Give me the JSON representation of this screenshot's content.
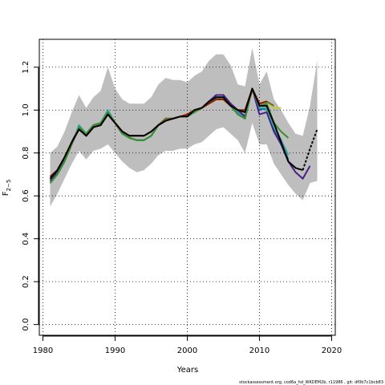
{
  "chart_data": {
    "type": "line",
    "title": "",
    "xlabel": "Years",
    "ylabel_main": "F",
    "ylabel_sub": "2−5",
    "xlim": [
      1979.5,
      2020.5
    ],
    "ylim": [
      -0.05,
      1.33
    ],
    "x_ticks": [
      1980,
      1990,
      2000,
      2010,
      2020
    ],
    "x_tick_labels": [
      "1980",
      "1990",
      "2000",
      "2010",
      "2020"
    ],
    "y_ticks": [
      0.0,
      0.2,
      0.4,
      0.6,
      0.8,
      1.0,
      1.2
    ],
    "y_tick_labels": [
      "0.0",
      "0.2",
      "0.4",
      "0.6",
      "0.8",
      "1.0",
      "1.2"
    ],
    "grid": true,
    "legend": "none",
    "confidence_band": {
      "x": [
        1981,
        1982,
        1983,
        1984,
        1985,
        1986,
        1987,
        1988,
        1989,
        1990,
        1991,
        1992,
        1993,
        1994,
        1995,
        1996,
        1997,
        1998,
        1999,
        2000,
        2001,
        2002,
        2003,
        2004,
        2005,
        2006,
        2007,
        2008,
        2009,
        2010,
        2011,
        2012,
        2013,
        2014,
        2015,
        2016,
        2017,
        2018
      ],
      "upper": [
        0.8,
        0.83,
        0.9,
        0.99,
        1.07,
        1.01,
        1.06,
        1.09,
        1.2,
        1.1,
        1.05,
        1.03,
        1.03,
        1.03,
        1.06,
        1.12,
        1.15,
        1.14,
        1.14,
        1.13,
        1.16,
        1.18,
        1.23,
        1.26,
        1.26,
        1.21,
        1.12,
        1.11,
        1.29,
        1.12,
        1.18,
        1.05,
        1.0,
        0.94,
        0.89,
        0.88,
        1.02,
        1.23
      ],
      "lower": [
        0.55,
        0.61,
        0.68,
        0.75,
        0.81,
        0.77,
        0.81,
        0.82,
        0.84,
        0.8,
        0.76,
        0.73,
        0.71,
        0.72,
        0.75,
        0.79,
        0.81,
        0.81,
        0.82,
        0.82,
        0.84,
        0.85,
        0.88,
        0.91,
        0.92,
        0.89,
        0.86,
        0.8,
        0.94,
        0.84,
        0.84,
        0.75,
        0.7,
        0.65,
        0.61,
        0.58,
        0.66,
        0.67
      ],
      "color": "#bebebe"
    },
    "series": [
      {
        "color": "#3b9db5",
        "x": [
          1981,
          1982,
          1983,
          1984,
          1985,
          1986,
          1987,
          1988,
          1989,
          1990,
          1991,
          1992,
          1993,
          1994,
          1995,
          1996,
          1997,
          1998,
          1999,
          2000,
          2001,
          2002,
          2003,
          2004,
          2005,
          2006,
          2007,
          2008,
          2009,
          2010,
          2011,
          2012,
          2013,
          2014
        ],
        "values": [
          0.66,
          0.7,
          0.76,
          0.84,
          0.92,
          0.89,
          0.93,
          0.94,
          0.99,
          0.94,
          0.89,
          0.87,
          0.86,
          0.86,
          0.88,
          0.93,
          0.96,
          0.96,
          0.97,
          0.97,
          0.99,
          1.01,
          1.04,
          1.06,
          1.06,
          1.02,
          0.99,
          0.96,
          1.1,
          1.01,
          1.0,
          0.9,
          0.84,
          0.76
        ]
      },
      {
        "color": "#1f5faa",
        "x": [
          1981,
          1982,
          1983,
          1984,
          1985,
          1986,
          1987,
          1988,
          1989,
          1990,
          1991,
          1992,
          1993,
          1994,
          1995,
          1996,
          1997,
          1998,
          1999,
          2000,
          2001,
          2002,
          2003,
          2004,
          2005,
          2006,
          2007,
          2008,
          2009,
          2010,
          2011,
          2012,
          2013,
          2014
        ],
        "values": [
          0.67,
          0.71,
          0.77,
          0.85,
          0.92,
          0.89,
          0.93,
          0.94,
          0.99,
          0.94,
          0.89,
          0.87,
          0.86,
          0.86,
          0.88,
          0.93,
          0.96,
          0.96,
          0.97,
          0.97,
          1.0,
          1.01,
          1.04,
          1.07,
          1.07,
          1.03,
          1.0,
          0.97,
          1.1,
          1.0,
          1.01,
          0.91,
          0.84,
          0.77
        ]
      },
      {
        "color": "#4a1f86",
        "x": [
          1981,
          1982,
          1983,
          1984,
          1985,
          1986,
          1987,
          1988,
          1989,
          1990,
          1991,
          1992,
          1993,
          1994,
          1995,
          1996,
          1997,
          1998,
          1999,
          2000,
          2001,
          2002,
          2003,
          2004,
          2005,
          2006,
          2007,
          2008,
          2009,
          2010,
          2011,
          2012,
          2013,
          2014,
          2015,
          2016,
          2017
        ],
        "values": [
          0.67,
          0.71,
          0.77,
          0.85,
          0.92,
          0.89,
          0.93,
          0.94,
          0.99,
          0.94,
          0.89,
          0.87,
          0.86,
          0.86,
          0.88,
          0.93,
          0.96,
          0.96,
          0.97,
          0.97,
          1.0,
          1.01,
          1.04,
          1.07,
          1.07,
          1.03,
          1.0,
          0.97,
          1.1,
          0.98,
          0.99,
          0.9,
          0.84,
          0.76,
          0.71,
          0.68,
          0.74
        ]
      },
      {
        "color": "#2aa89a",
        "x": [
          1981,
          1982,
          1983,
          1984,
          1985,
          1986,
          1987,
          1988,
          1989,
          1990,
          1991,
          1992,
          1993,
          1994,
          1995,
          1996,
          1997,
          1998,
          1999,
          2000,
          2001,
          2002,
          2003,
          2004,
          2005,
          2006,
          2007,
          2008,
          2009,
          2010,
          2011,
          2012,
          2013,
          2014
        ],
        "values": [
          0.66,
          0.7,
          0.76,
          0.84,
          0.93,
          0.89,
          0.93,
          0.94,
          1.0,
          0.94,
          0.89,
          0.87,
          0.86,
          0.86,
          0.88,
          0.93,
          0.96,
          0.96,
          0.97,
          0.97,
          0.99,
          1.01,
          1.04,
          1.06,
          1.06,
          1.02,
          0.98,
          0.96,
          1.1,
          1.01,
          1.01,
          0.92,
          0.86,
          0.79
        ]
      },
      {
        "color": "#3a8f2e",
        "x": [
          1981,
          1982,
          1983,
          1984,
          1985,
          1986,
          1987,
          1988,
          1989,
          1990,
          1991,
          1992,
          1993,
          1994,
          1995,
          1996,
          1997,
          1998,
          1999,
          2000,
          2001,
          2002,
          2003,
          2004,
          2005,
          2006,
          2007,
          2008,
          2009,
          2010,
          2011,
          2012,
          2013,
          2014
        ],
        "values": [
          0.66,
          0.7,
          0.76,
          0.84,
          0.92,
          0.89,
          0.93,
          0.94,
          0.99,
          0.94,
          0.89,
          0.87,
          0.86,
          0.86,
          0.88,
          0.93,
          0.96,
          0.96,
          0.97,
          0.97,
          0.99,
          1.01,
          1.03,
          1.05,
          1.05,
          1.02,
          0.98,
          0.96,
          1.1,
          1.02,
          1.03,
          0.94,
          0.9,
          0.87
        ]
      },
      {
        "color": "#c8c83a",
        "x": [
          1981,
          1982,
          1983,
          1984,
          1985,
          1986,
          1987,
          1988,
          1989,
          1990,
          1991,
          1992,
          1993,
          1994,
          1995,
          1996,
          1997,
          1998,
          1999,
          2000,
          2001,
          2002,
          2003,
          2004,
          2005,
          2006,
          2007,
          2008,
          2009,
          2010,
          2011,
          2012,
          2013
        ],
        "values": [
          0.68,
          0.72,
          0.78,
          0.85,
          0.91,
          0.88,
          0.92,
          0.93,
          0.98,
          0.94,
          0.9,
          0.88,
          0.88,
          0.88,
          0.9,
          0.93,
          0.96,
          0.96,
          0.97,
          0.97,
          1.0,
          1.01,
          1.03,
          1.05,
          1.05,
          1.02,
          1.0,
          0.99,
          1.09,
          1.03,
          1.04,
          1.01,
          1.01
        ]
      },
      {
        "color": "#6b6b2a",
        "x": [
          1981,
          1982,
          1983,
          1984,
          1985,
          1986,
          1987,
          1988,
          1989,
          1990,
          1991,
          1992,
          1993,
          1994,
          1995,
          1996,
          1997,
          1998,
          1999,
          2000,
          2001,
          2002,
          2003,
          2004,
          2005,
          2006,
          2007,
          2008,
          2009,
          2010,
          2011,
          2012
        ],
        "values": [
          0.68,
          0.72,
          0.78,
          0.85,
          0.91,
          0.88,
          0.92,
          0.93,
          0.98,
          0.94,
          0.9,
          0.88,
          0.88,
          0.88,
          0.9,
          0.93,
          0.96,
          0.96,
          0.97,
          0.97,
          1.0,
          1.01,
          1.03,
          1.05,
          1.05,
          1.02,
          1.0,
          0.99,
          1.09,
          1.03,
          1.04,
          1.02
        ]
      },
      {
        "color": "#8b1a00",
        "x": [
          1981,
          1982,
          1983,
          1984,
          1985,
          1986,
          1987,
          1988,
          1989,
          1990,
          1991,
          1992,
          1993,
          1994,
          1995,
          1996,
          1997,
          1998,
          1999,
          2000,
          2001,
          2002,
          2003,
          2004,
          2005,
          2006,
          2007,
          2008,
          2009,
          2010,
          2011
        ],
        "values": [
          0.69,
          0.72,
          0.78,
          0.85,
          0.91,
          0.88,
          0.92,
          0.93,
          0.98,
          0.94,
          0.9,
          0.88,
          0.88,
          0.88,
          0.9,
          0.93,
          0.95,
          0.96,
          0.97,
          0.98,
          1.0,
          1.01,
          1.03,
          1.05,
          1.05,
          1.02,
          1.0,
          1.0,
          1.1,
          1.03,
          1.04
        ]
      },
      {
        "color": "#000000",
        "x": [
          1981,
          1982,
          1983,
          1984,
          1985,
          1986,
          1987,
          1988,
          1989,
          1990,
          1991,
          1992,
          1993,
          1994,
          1995,
          1996,
          1997,
          1998,
          1999,
          2000,
          2001,
          2002,
          2003,
          2004,
          2005,
          2006,
          2007,
          2008,
          2009,
          2010,
          2011,
          2012,
          2013,
          2014,
          2015,
          2016
        ],
        "values": [
          0.68,
          0.72,
          0.78,
          0.85,
          0.91,
          0.88,
          0.92,
          0.93,
          0.98,
          0.94,
          0.9,
          0.88,
          0.88,
          0.88,
          0.9,
          0.93,
          0.95,
          0.96,
          0.97,
          0.97,
          1.0,
          1.01,
          1.04,
          1.06,
          1.06,
          1.02,
          1.0,
          0.99,
          1.1,
          1.02,
          1.02,
          0.94,
          0.85,
          0.76,
          0.73,
          0.72
        ],
        "dashed_x": [
          2016,
          2017,
          2018
        ],
        "dashed_values": [
          0.72,
          0.82,
          0.91
        ]
      }
    ]
  },
  "footer_text": "stockassessment.org,  cod6a_hd_WKDEM2b,  r11986 ,  git:  df0b7c1bcb83"
}
